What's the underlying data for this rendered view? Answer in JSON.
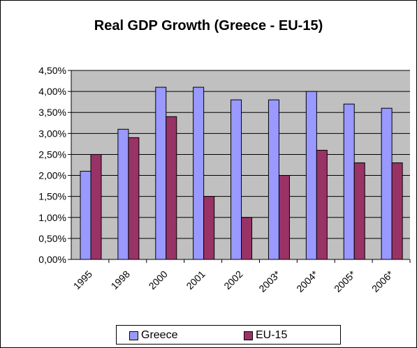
{
  "chart_data": {
    "type": "bar",
    "title": "Real GDP Growth (Greece - EU-15)",
    "xlabel": "",
    "ylabel": "",
    "categories": [
      "1995",
      "1998",
      "2000",
      "2001",
      "2002",
      "2003*",
      "2004*",
      "2005*",
      "2006*"
    ],
    "series": [
      {
        "name": "Greece",
        "values": [
          2.1,
          3.1,
          4.1,
          4.1,
          3.8,
          3.8,
          4.0,
          3.7,
          3.6
        ],
        "color": "#9999ff"
      },
      {
        "name": "EU-15",
        "values": [
          2.5,
          2.9,
          3.4,
          1.5,
          1.0,
          2.0,
          2.6,
          2.3,
          2.3
        ],
        "color": "#993366"
      }
    ],
    "yticks": [
      "0,00%",
      "0,50%",
      "1,00%",
      "1,50%",
      "2,00%",
      "2,50%",
      "3,00%",
      "3,50%",
      "4,00%",
      "4,50%"
    ],
    "ylim": [
      0,
      4.5
    ],
    "grid": true,
    "legend_position": "bottom",
    "plot_background": "#c0c0c0"
  }
}
